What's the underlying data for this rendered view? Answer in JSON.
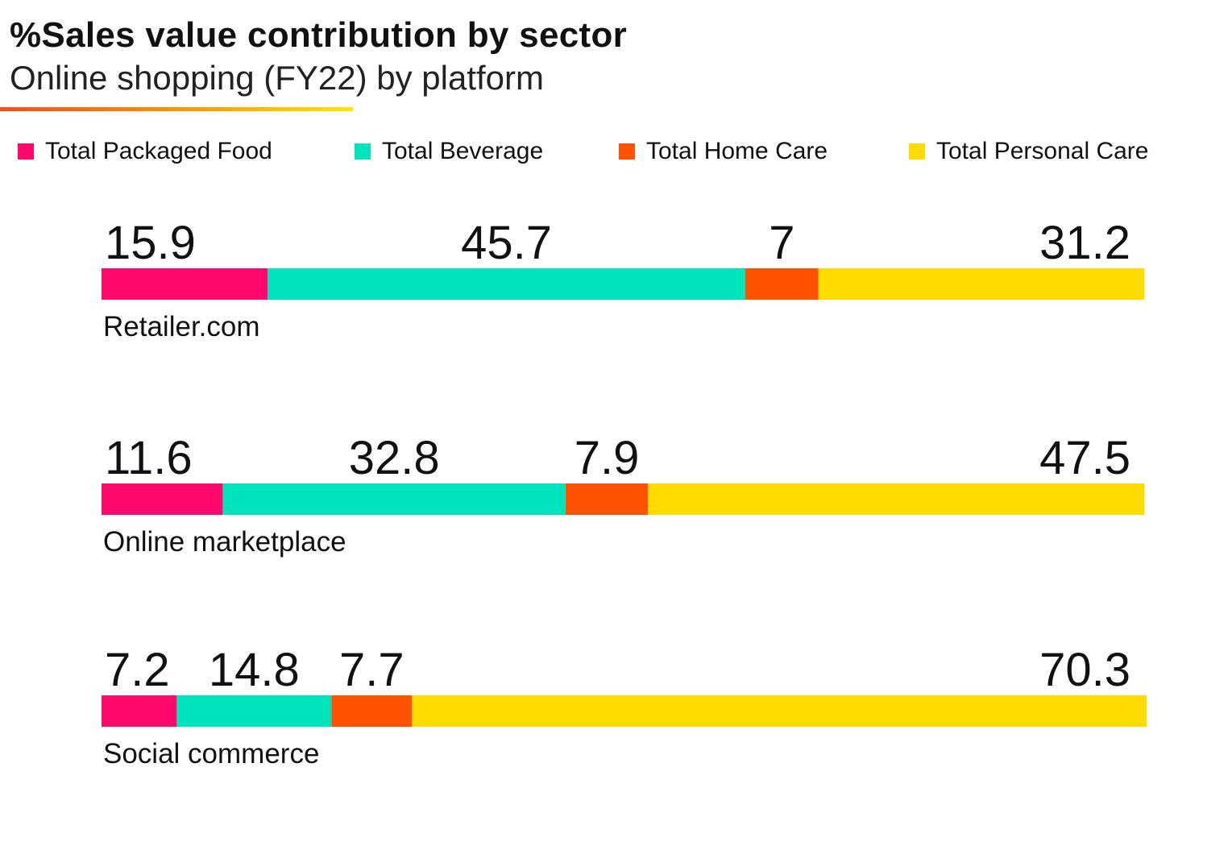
{
  "chart_data": {
    "type": "bar",
    "orientation": "horizontal",
    "stacked": true,
    "title": "%Sales value contribution by sector",
    "subtitle": "Online shopping (FY22) by platform",
    "categories": [
      "Retailer.com",
      "Online marketplace",
      "Social commerce"
    ],
    "series": [
      {
        "name": "Total Packaged Food",
        "color": "#ff0a6c",
        "values": [
          15.9,
          11.6,
          7.2
        ]
      },
      {
        "name": "Total Beverage",
        "color": "#00e4bd",
        "values": [
          45.7,
          32.8,
          14.8
        ]
      },
      {
        "name": "Total Home Care",
        "color": "#ff5200",
        "values": [
          7,
          7.9,
          7.7
        ]
      },
      {
        "name": "Total Personal Care",
        "color": "#ffdc00",
        "values": [
          31.2,
          47.5,
          70.3
        ]
      }
    ],
    "value_labels": [
      [
        "15.9",
        "45.7",
        "7",
        "31.2"
      ],
      [
        "11.6",
        "32.8",
        "7.9",
        "47.5"
      ],
      [
        "7.2",
        "14.8",
        "7.7",
        "70.3"
      ]
    ],
    "xlim": [
      0,
      100
    ],
    "xlabel": "",
    "ylabel": "",
    "grid": false,
    "legend_position": "top"
  }
}
